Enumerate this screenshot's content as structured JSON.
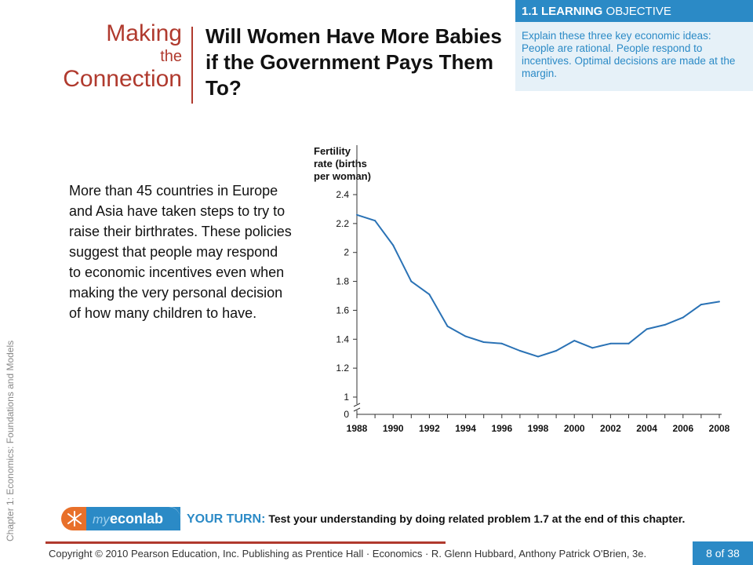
{
  "header": {
    "making": "Making",
    "the": "the",
    "connection": "Connection",
    "headline": "Will Women Have More Babies if the Government Pays Them To?"
  },
  "learning_objective": {
    "number_label": "1.1 LEARNING",
    "label_rest": "OBJECTIVE",
    "text": "Explain these three key economic ideas: People are rational. People respond to incentives. Optimal decisions are made at the margin."
  },
  "body_text": "More than 45 countries in Europe and Asia have taken steps to try to raise their birthrates. These policies suggest that people may respond to economic incentives even when making the very personal decision of how many children to have.",
  "chart_data": {
    "type": "line",
    "ylabel": [
      "Fertility",
      "rate (births",
      "per woman)"
    ],
    "x": [
      1988,
      1989,
      1990,
      1991,
      1992,
      1993,
      1994,
      1995,
      1996,
      1997,
      1998,
      1999,
      2000,
      2001,
      2002,
      2003,
      2004,
      2005,
      2006,
      2007,
      2008
    ],
    "values": [
      2.26,
      2.22,
      2.05,
      1.8,
      1.71,
      1.49,
      1.42,
      1.38,
      1.37,
      1.32,
      1.28,
      1.32,
      1.39,
      1.34,
      1.37,
      1.37,
      1.47,
      1.5,
      1.55,
      1.64,
      1.66
    ],
    "x_ticks": [
      "1988",
      "1990",
      "1992",
      "1994",
      "1996",
      "1998",
      "2000",
      "2002",
      "2004",
      "2006",
      "2008"
    ],
    "y_ticks": [
      "2.4",
      "2.2",
      "2",
      "1.8",
      "1.6",
      "1.4",
      "1.2",
      "1"
    ],
    "y_zero_label": "0",
    "ylim": [
      1,
      2.4
    ],
    "axis_break": true,
    "grid": false,
    "line_color": "#2a72b5"
  },
  "sidebar_label": "Chapter 1: Economics:  Foundations and Models",
  "econlab": {
    "prefix": "my",
    "name": "econlab"
  },
  "your_turn": {
    "label": "YOUR TURN:",
    "text": "Test your understanding by doing related problem 1.7 at the end of this chapter."
  },
  "footer": {
    "copyright": "Copyright © 2010 Pearson Education, Inc. Publishing as Prentice Hall · Economics · R. Glenn Hubbard, Anthony Patrick O'Brien, 3e.",
    "page": "8 of 38"
  },
  "colors": {
    "accent_red": "#b03a2e",
    "accent_blue": "#2b8ac6",
    "econlab_orange": "#e8702a"
  }
}
